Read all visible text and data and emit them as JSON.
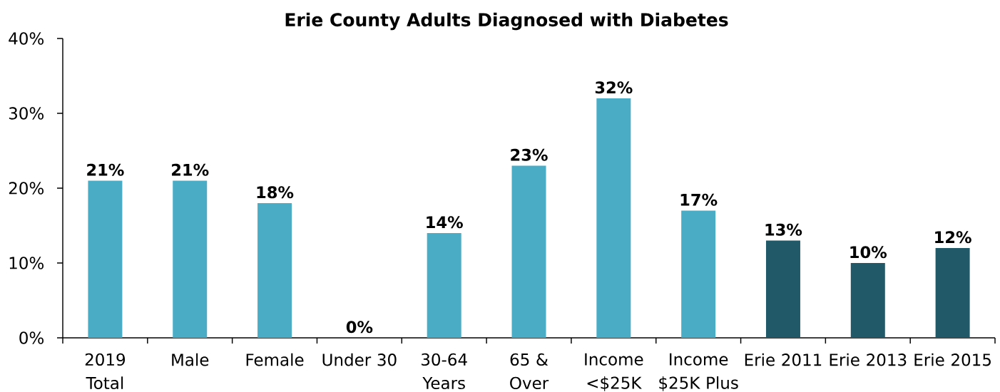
{
  "chart_data": {
    "type": "bar",
    "title": "Erie County Adults Diagnosed with Diabetes",
    "categories": [
      "2019 Total",
      "Male",
      "Female",
      "Under 30",
      "30-64 Years",
      "65 & Over",
      "Income <$25K",
      "Income $25K Plus",
      "Erie 2011",
      "Erie 2013",
      "Erie 2015"
    ],
    "values": [
      21,
      21,
      18,
      0,
      14,
      23,
      32,
      17,
      13,
      10,
      12
    ],
    "colors": [
      "#4bacc6",
      "#4bacc6",
      "#4bacc6",
      "#4bacc6",
      "#4bacc6",
      "#4bacc6",
      "#4bacc6",
      "#4bacc6",
      "#215968",
      "#215968",
      "#215968"
    ],
    "value_labels": [
      "21%",
      "21%",
      "18%",
      "0%",
      "14%",
      "23%",
      "32%",
      "17%",
      "13%",
      "10%",
      "12%"
    ],
    "ylim": [
      0,
      40
    ],
    "yticks": [
      {
        "value": 0,
        "label": "0%"
      },
      {
        "value": 10,
        "label": "10%"
      },
      {
        "value": 20,
        "label": "20%"
      },
      {
        "value": 30,
        "label": "30%"
      },
      {
        "value": 40,
        "label": "40%"
      }
    ]
  }
}
